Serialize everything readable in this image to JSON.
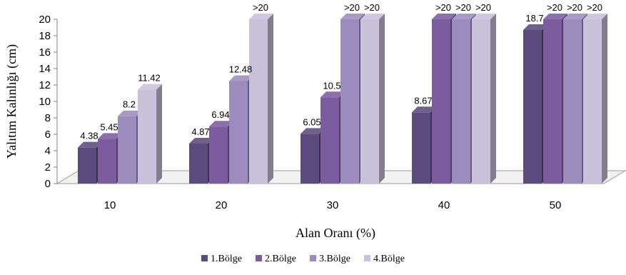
{
  "chart_data": {
    "type": "bar",
    "style": "3d-clustered-column",
    "title": "",
    "xlabel": "Alan Oranı (%)",
    "ylabel": "Yalıtım Kalınlığı (cm)",
    "ylim": [
      0,
      20
    ],
    "yticks": [
      0,
      2,
      4,
      6,
      8,
      10,
      12,
      14,
      16,
      18,
      20
    ],
    "categories": [
      "10",
      "20",
      "30",
      "40",
      "50"
    ],
    "legend_position": "bottom",
    "series": [
      {
        "name": "1.Bölge",
        "color": "#5b4a7c",
        "values": [
          4.38,
          4.87,
          6.05,
          8.67,
          18.7
        ],
        "labels": [
          "4.38",
          "4.87",
          "6.05",
          "8.67",
          "18.7"
        ]
      },
      {
        "name": "2.Bölge",
        "color": "#7b5c9e",
        "values": [
          5.45,
          6.94,
          10.5,
          20,
          20
        ],
        "labels": [
          "5.45",
          "6.94",
          "10.5",
          ">20",
          ">20"
        ]
      },
      {
        "name": "3.Bölge",
        "color": "#9c8bbd",
        "values": [
          8.2,
          12.48,
          20,
          20,
          20
        ],
        "labels": [
          "8.2",
          "12.48",
          ">20",
          ">20",
          ">20"
        ]
      },
      {
        "name": "4.Bölge",
        "color": "#c9c0da",
        "values": [
          11.42,
          20,
          20,
          20,
          20
        ],
        "labels": [
          "11.42",
          ">20",
          ">20",
          ">20",
          ">20"
        ]
      }
    ]
  }
}
